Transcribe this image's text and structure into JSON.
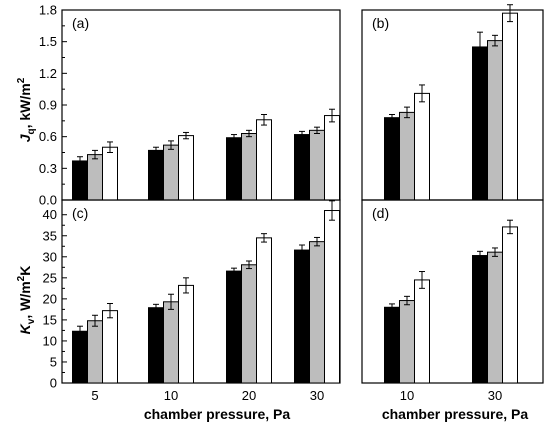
{
  "figure": {
    "xlabel_left": "chamber pressure, Pa",
    "xlabel_right": "chamber pressure, Pa",
    "ylabel_top": {
      "main": "J",
      "sub": "q",
      "rest": ", kW/m",
      "sup": "2"
    },
    "ylabel_bottom": {
      "main": "K",
      "sub": "v",
      "rest": ", W/m",
      "sup": "2",
      "tail": "K"
    }
  },
  "series_fill": [
    "#000000",
    "#bdbdbd",
    "#ffffff"
  ],
  "chart_data": [
    {
      "panel": "(a)",
      "type": "bar",
      "categories": [
        "5",
        "10",
        "20",
        "30"
      ],
      "ylim": [
        0,
        1.8
      ],
      "yticks": [
        "0.0",
        "0.3",
        "0.6",
        "0.9",
        "1.2",
        "1.5",
        "1.8"
      ],
      "series": [
        {
          "values": [
            0.37,
            0.47,
            0.59,
            0.62
          ],
          "errors": [
            0.04,
            0.03,
            0.03,
            0.03
          ]
        },
        {
          "values": [
            0.43,
            0.52,
            0.63,
            0.66
          ],
          "errors": [
            0.04,
            0.04,
            0.03,
            0.03
          ]
        },
        {
          "values": [
            0.5,
            0.61,
            0.76,
            0.8
          ],
          "errors": [
            0.05,
            0.03,
            0.05,
            0.06
          ]
        }
      ]
    },
    {
      "panel": "(b)",
      "type": "bar",
      "categories": [
        "10",
        "30"
      ],
      "ylim": [
        0,
        1.8
      ],
      "yticks": [],
      "series": [
        {
          "values": [
            0.78,
            1.45
          ],
          "errors": [
            0.03,
            0.14
          ]
        },
        {
          "values": [
            0.83,
            1.51
          ],
          "errors": [
            0.05,
            0.05
          ]
        },
        {
          "values": [
            1.01,
            1.77
          ],
          "errors": [
            0.08,
            0.08
          ]
        }
      ]
    },
    {
      "panel": "(c)",
      "type": "bar",
      "categories": [
        "5",
        "10",
        "20",
        "30"
      ],
      "ylim": [
        0,
        43.5
      ],
      "yticks": [
        "0",
        "5",
        "10",
        "15",
        "20",
        "25",
        "30",
        "35",
        "40"
      ],
      "series": [
        {
          "values": [
            12.3,
            17.9,
            26.6,
            31.6
          ],
          "errors": [
            1.2,
            0.8,
            0.7,
            1.2
          ]
        },
        {
          "values": [
            14.8,
            19.3,
            28.1,
            33.6
          ],
          "errors": [
            1.3,
            1.8,
            0.9,
            1.0
          ]
        },
        {
          "values": [
            17.2,
            23.2,
            34.5,
            41.0
          ],
          "errors": [
            1.7,
            1.8,
            1.0,
            2.3
          ]
        }
      ]
    },
    {
      "panel": "(d)",
      "type": "bar",
      "categories": [
        "10",
        "30"
      ],
      "ylim": [
        0,
        43.5
      ],
      "yticks": [],
      "series": [
        {
          "values": [
            18.0,
            30.3
          ],
          "errors": [
            0.8,
            1.0
          ]
        },
        {
          "values": [
            19.6,
            31.1
          ],
          "errors": [
            1.0,
            1.0
          ]
        },
        {
          "values": [
            24.5,
            37.1
          ],
          "errors": [
            2.0,
            1.6
          ]
        }
      ]
    }
  ]
}
